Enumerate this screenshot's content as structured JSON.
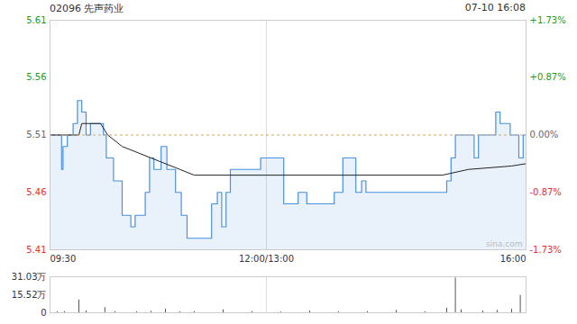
{
  "chart_data": {
    "type": "line",
    "title": "02096 先声药业",
    "subtitle": "07-10 16:08",
    "watermark": "sina.com",
    "grid": true,
    "xlim": [
      0,
      330
    ],
    "xticks": [
      {
        "value": 0,
        "label": "09:30"
      },
      {
        "value": 150,
        "label": "12:00/13:00"
      },
      {
        "value": 330,
        "label": "16:00"
      }
    ],
    "ylim": [
      5.41,
      5.61
    ],
    "yticks": [
      5.61,
      5.56,
      5.51,
      5.46,
      5.41
    ],
    "y2lim": [
      -1.73,
      1.73
    ],
    "y2ticks": [
      {
        "value": 1.73,
        "label": "+1.73%"
      },
      {
        "value": 0.87,
        "label": "+0.87%"
      },
      {
        "value": 0,
        "label": "0.00%"
      },
      {
        "value": -0.87,
        "label": "-0.87%"
      },
      {
        "value": -1.73,
        "label": "-1.73%"
      }
    ],
    "prev_close": 5.51,
    "series": [
      {
        "type": "area",
        "color": "#4a90e2",
        "x": [
          0,
          8,
          9,
          12,
          16,
          19,
          22,
          25,
          28,
          37,
          39,
          44,
          50,
          56,
          59,
          66,
          69,
          72,
          77,
          81,
          87,
          91,
          95,
          112,
          116,
          119,
          122,
          125,
          146,
          159,
          162,
          172,
          178,
          197,
          203,
          209,
          212,
          216,
          219,
          272,
          275,
          278,
          281,
          291,
          294,
          297,
          306,
          309,
          312,
          319,
          325,
          328,
          330
        ],
        "values": [
          5.51,
          5.48,
          5.5,
          5.51,
          5.52,
          5.54,
          5.53,
          5.51,
          5.52,
          5.51,
          5.49,
          5.47,
          5.44,
          5.43,
          5.44,
          5.46,
          5.49,
          5.48,
          5.5,
          5.48,
          5.46,
          5.44,
          5.42,
          5.45,
          5.46,
          5.43,
          5.46,
          5.48,
          5.49,
          5.49,
          5.45,
          5.46,
          5.45,
          5.46,
          5.49,
          5.49,
          5.46,
          5.47,
          5.46,
          5.46,
          5.47,
          5.49,
          5.51,
          5.51,
          5.49,
          5.51,
          5.51,
          5.53,
          5.52,
          5.51,
          5.49,
          5.51,
          5.51
        ]
      },
      {
        "type": "line",
        "color": "#222222",
        "x": [
          0,
          20,
          22,
          35,
          40,
          50,
          70,
          90,
          100,
          272,
          290,
          320,
          330
        ],
        "values": [
          5.51,
          5.51,
          5.52,
          5.52,
          5.51,
          5.5,
          5.49,
          5.48,
          5.475,
          5.475,
          5.48,
          5.483,
          5.485
        ]
      }
    ],
    "volume": {
      "type": "bar",
      "color": "#555555",
      "ylim": [
        0,
        310300
      ],
      "yticks": [
        {
          "value": 310300,
          "label": "31.03万"
        },
        {
          "value": 155200,
          "label": "15.52万"
        },
        0
      ],
      "x": [
        0,
        5,
        10,
        20,
        25,
        38,
        45,
        60,
        70,
        80,
        90,
        100,
        120,
        140,
        160,
        180,
        200,
        220,
        240,
        260,
        275,
        281,
        285,
        300,
        310,
        320,
        326,
        330
      ],
      "values": [
        20000,
        8000,
        10000,
        110000,
        15000,
        45000,
        10000,
        8000,
        12000,
        30000,
        8000,
        10000,
        25000,
        10000,
        6000,
        15000,
        8000,
        10000,
        20000,
        8000,
        40000,
        300000,
        25000,
        15000,
        20000,
        30000,
        150000,
        60000
      ]
    }
  }
}
